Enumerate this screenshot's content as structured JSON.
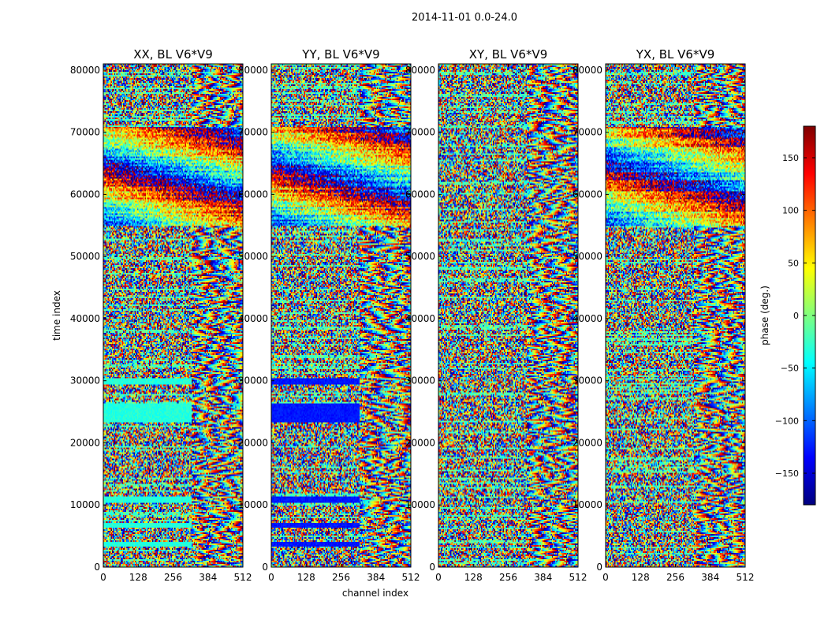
{
  "figure": {
    "suptitle": "2014-11-01 0.0-24.0",
    "xlabel": "channel index",
    "ylabel": "time index"
  },
  "chart_data": {
    "type": "heatmap",
    "colormap": "jet",
    "x_range": [
      0,
      512
    ],
    "y_range": [
      0,
      81000
    ],
    "x_ticks": [
      "0",
      "128",
      "256",
      "384",
      "512"
    ],
    "x_tick_values": [
      0,
      128,
      256,
      384,
      512
    ],
    "y_ticks": [
      "0",
      "10000",
      "20000",
      "30000",
      "40000",
      "50000",
      "60000",
      "70000",
      "80000"
    ],
    "y_tick_values": [
      0,
      10000,
      20000,
      30000,
      40000,
      50000,
      60000,
      70000,
      80000
    ],
    "panels": [
      {
        "title": "XX, BL V6*V9"
      },
      {
        "title": "YY, BL V6*V9"
      },
      {
        "title": "XY, BL V6*V9"
      },
      {
        "title": "YX, BL V6*V9"
      }
    ],
    "colorbar": {
      "label": "phase (deg.)",
      "range": [
        -180,
        180
      ],
      "ticks": [
        "150",
        "100",
        "50",
        "0",
        "−50",
        "−100",
        "−150"
      ],
      "tick_values": [
        150,
        100,
        50,
        0,
        -50,
        -100,
        -150
      ]
    },
    "colors": {
      "jet_stops": [
        "#00007f",
        "#0000ff",
        "#007fff",
        "#00ffff",
        "#7fff7f",
        "#ffff00",
        "#ff7f00",
        "#ff0000",
        "#7f0000"
      ]
    }
  }
}
